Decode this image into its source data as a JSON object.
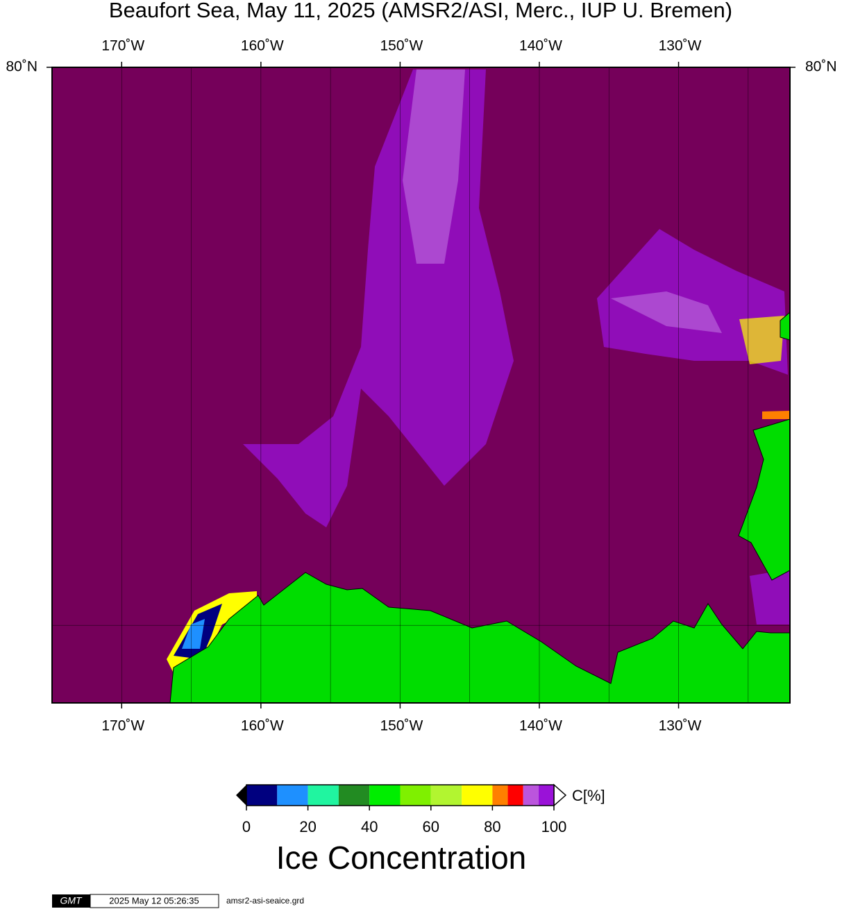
{
  "title": "Beaufort Sea, May 11, 2025 (AMSR2/ASI, Merc., IUP U. Bremen)",
  "map": {
    "lonlim": [
      -175,
      -122
    ],
    "latlim": [
      68,
      80
    ],
    "lon_ticks": [
      {
        "value": -170,
        "label": "170˚W"
      },
      {
        "value": -160,
        "label": "160˚W"
      },
      {
        "value": -150,
        "label": "150˚W"
      },
      {
        "value": -140,
        "label": "140˚W"
      },
      {
        "value": -130,
        "label": "130˚W"
      }
    ],
    "lat_ticks": [
      {
        "value": 80,
        "label": "80˚N"
      }
    ],
    "lon_gridlines": [
      -170,
      -165,
      -160,
      -155,
      -150,
      -145,
      -140,
      -135,
      -130,
      -125
    ],
    "lat_gridlines": [
      70
    ]
  },
  "colorbar": {
    "title": "Ice Concentration",
    "unit_label": "C[%]",
    "range": [
      0,
      100
    ],
    "ticks": [
      0,
      20,
      40,
      60,
      80,
      100
    ],
    "segments": [
      {
        "from": 0,
        "to": 10,
        "color": "#00007f"
      },
      {
        "from": 10,
        "to": 20,
        "color": "#1e90ff"
      },
      {
        "from": 20,
        "to": 30,
        "color": "#20f5a0"
      },
      {
        "from": 30,
        "to": 40,
        "color": "#228b22"
      },
      {
        "from": 40,
        "to": 50,
        "color": "#00ee00"
      },
      {
        "from": 50,
        "to": 60,
        "color": "#7ff000"
      },
      {
        "from": 60,
        "to": 70,
        "color": "#b2f530"
      },
      {
        "from": 70,
        "to": 80,
        "color": "#ffff00"
      },
      {
        "from": 80,
        "to": 85,
        "color": "#ff8000"
      },
      {
        "from": 85,
        "to": 90,
        "color": "#ff0000"
      },
      {
        "from": 90,
        "to": 95,
        "color": "#bb55dd"
      },
      {
        "from": 95,
        "to": 100,
        "color": "#9a12d8"
      }
    ]
  },
  "footer": {
    "logo": "GMT",
    "timestamp": "2025 May 12 05:26:35",
    "file": "amsr2-asi-seaice.grd"
  }
}
